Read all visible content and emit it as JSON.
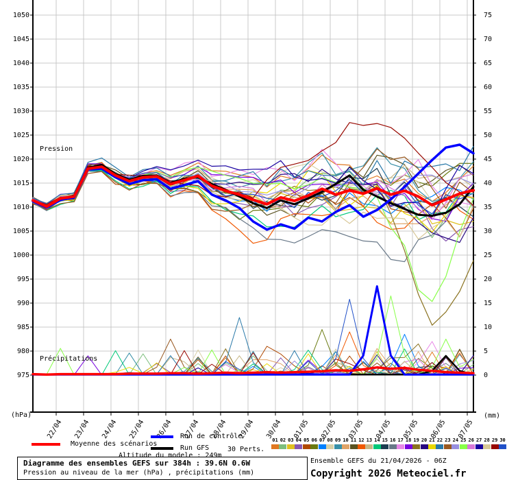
{
  "axes": {
    "left_unit": "(hPa)",
    "right_unit": "(mm)",
    "left_ticks": [
      "1050",
      "1045",
      "1040",
      "1035",
      "1030",
      "1025",
      "1020",
      "1015",
      "1010",
      "1005",
      "1000",
      "995",
      "990",
      "985",
      "980",
      "975"
    ],
    "right_ticks": [
      "75",
      "70",
      "65",
      "60",
      "55",
      "50",
      "45",
      "40",
      "35",
      "30",
      "25",
      "20",
      "15",
      "10",
      "5",
      "0"
    ]
  },
  "legend": {
    "mean_label": "Moyenne des scénarios",
    "control_label": "Run de contrôle",
    "gfs_label": "Run GFS",
    "perts_label": "30 Perts.",
    "altitude_label": "Altitude du modele : 249m"
  },
  "footer": {
    "title": "Diagramme des ensembles GEFS sur 384h : 39.6N 0.6W",
    "subtitle": "Pression au niveau de la mer (hPa) , précipitations (mm)",
    "run_info": "Ensemble GEFS du 21/04/2026 - 06Z",
    "copyright": "Copyright 2026 Meteociel.fr"
  },
  "chart_data": {
    "type": "line",
    "x_dates": [
      "22/04",
      "23/04",
      "24/04",
      "25/04",
      "26/04",
      "27/04",
      "28/04",
      "29/04",
      "30/04",
      "01/05",
      "02/05",
      "03/05",
      "04/05",
      "05/05",
      "06/05",
      "07/05"
    ],
    "grid_color": "#c8c8c8",
    "pressure": {
      "label": "Pression",
      "ylim": [
        975,
        1053
      ],
      "mean": {
        "color": "#ff0000",
        "values": [
          1011.4,
          1010.1,
          1011.8,
          1012.2,
          1018.0,
          1018.4,
          1016.6,
          1015.4,
          1016.2,
          1016.4,
          1014.8,
          1015.6,
          1016.5,
          1014.4,
          1013.4,
          1012.6,
          1011.5,
          1010.6,
          1012.0,
          1011.3,
          1012.4,
          1013.8,
          1012.6,
          1013.5,
          1012.8,
          1013.9,
          1012.6,
          1013.4,
          1012.2,
          1010.4,
          1011.6,
          1012.8,
          1013.5
        ]
      },
      "control": {
        "color": "#0000ff",
        "values": [
          1011.2,
          1009.9,
          1011.5,
          1012.0,
          1017.8,
          1018.0,
          1016.2,
          1014.8,
          1015.6,
          1015.8,
          1013.8,
          1014.6,
          1015.4,
          1012.6,
          1011.4,
          1009.8,
          1007.0,
          1005.3,
          1006.4,
          1005.5,
          1007.8,
          1007.0,
          1009.0,
          1010.4,
          1008.0,
          1009.4,
          1011.6,
          1014.2,
          1017.0,
          1019.8,
          1022.4,
          1023.0,
          1021.2
        ]
      },
      "gfs": {
        "color": "#000000",
        "values": [
          1011.3,
          1010.0,
          1011.7,
          1012.4,
          1018.2,
          1018.8,
          1016.9,
          1015.7,
          1016.5,
          1016.6,
          1015.0,
          1015.9,
          1016.2,
          1014.8,
          1013.6,
          1012.2,
          1010.8,
          1009.8,
          1011.4,
          1010.6,
          1011.8,
          1013.2,
          1014.8,
          1016.6,
          1013.6,
          1012.2,
          1010.8,
          1009.6,
          1008.4,
          1008.2,
          1008.8,
          1010.6,
          1014.2
        ]
      },
      "spread_envelope": [
        0.5,
        0.6,
        0.7,
        0.8,
        0.8,
        0.9,
        1.0,
        1.1,
        1.2,
        1.3,
        1.5,
        1.7,
        1.9,
        2.1,
        2.3,
        2.5,
        2.7,
        2.9,
        3.1,
        3.3,
        3.5,
        3.7,
        3.9,
        4.1,
        4.3,
        4.5,
        4.7,
        4.9,
        5.1,
        5.3,
        5.5,
        5.7,
        5.9
      ],
      "anomalies": [
        {
          "member": "25",
          "k": 28.5,
          "dv": -20,
          "w": 1.8
        },
        {
          "member": "19",
          "k": 29.5,
          "dv": -22,
          "w": 2.2
        },
        {
          "member": "21",
          "k": 20.5,
          "dv": 6.5,
          "w": 3.0
        },
        {
          "member": "29",
          "k": 21.5,
          "dv": 8.5,
          "w": 3.5
        },
        {
          "member": "08",
          "k": 20.0,
          "dv": 5.5,
          "w": 3.0
        }
      ]
    },
    "precip": {
      "label": "Précipitations",
      "ylim_mm": [
        0,
        80
      ],
      "mean_values": [
        0.2,
        0.1,
        0.2,
        0.2,
        0.2,
        0.2,
        0.2,
        0.3,
        0.3,
        0.3,
        0.4,
        0.4,
        0.3,
        0.4,
        0.5,
        0.4,
        0.5,
        0.6,
        0.5,
        0.6,
        0.7,
        0.8,
        1.0,
        0.9,
        1.2,
        1.6,
        1.3,
        1.5,
        1.1,
        0.9,
        0.6,
        0.5,
        0.4
      ],
      "spikes": [
        {
          "member": "21",
          "k": 7.2,
          "mm": 1.6
        },
        {
          "member": "04",
          "k": 8.8,
          "mm": 2.4
        },
        {
          "member": "23",
          "k": 9.5,
          "mm": 7.5
        },
        {
          "member": "09",
          "k": 12.3,
          "mm": 3.5
        },
        {
          "member": "26",
          "k": 13.6,
          "mm": 2.2
        },
        {
          "member": "22",
          "k": 14.5,
          "mm": 12.0
        },
        {
          "member": "10",
          "k": 15.5,
          "mm": 3.2
        },
        {
          "member": "02",
          "k": 16.2,
          "mm": 4.0
        },
        {
          "member": "05",
          "k": 16.5,
          "mm": 6.0
        },
        {
          "member": "14",
          "k": 19.8,
          "mm": 5.2
        },
        {
          "member": "06",
          "k": 20.8,
          "mm": 9.5
        },
        {
          "member": "30",
          "k": 22.5,
          "mm": 15.8
        },
        {
          "member": "12",
          "k": 23.2,
          "mm": 9.0
        },
        {
          "member": "control",
          "k": 25.1,
          "mm": 18.5
        },
        {
          "member": "25",
          "k": 25.6,
          "mm": 16.5
        },
        {
          "member": "07",
          "k": 26.9,
          "mm": 8.5
        },
        {
          "member": "19",
          "k": 27.7,
          "mm": 6.5
        },
        {
          "member": "17",
          "k": 29.1,
          "mm": 7.0
        },
        {
          "member": "25",
          "k": 29.5,
          "mm": 7.5
        },
        {
          "member": "gfs",
          "k": 29.9,
          "mm": 4.0
        },
        {
          "member": "16",
          "k": 26.4,
          "mm": 4.2
        }
      ]
    },
    "members": [
      {
        "id": "01",
        "color": "#E07820"
      },
      {
        "id": "02",
        "color": "#7CBE7C"
      },
      {
        "id": "03",
        "color": "#E0C020"
      },
      {
        "id": "04",
        "color": "#8858B0"
      },
      {
        "id": "05",
        "color": "#B04800"
      },
      {
        "id": "06",
        "color": "#6A7A10"
      },
      {
        "id": "07",
        "color": "#0080FF"
      },
      {
        "id": "08",
        "color": "#D8D0A8"
      },
      {
        "id": "09",
        "color": "#3890A8"
      },
      {
        "id": "10",
        "color": "#E0A468"
      },
      {
        "id": "11",
        "color": "#5A5220"
      },
      {
        "id": "12",
        "color": "#F05800"
      },
      {
        "id": "13",
        "color": "#C8B888"
      },
      {
        "id": "14",
        "color": "#00C878"
      },
      {
        "id": "15",
        "color": "#1C3C50"
      },
      {
        "id": "16",
        "color": "#687888"
      },
      {
        "id": "17",
        "color": "#E888E8"
      },
      {
        "id": "18",
        "color": "#7800E0"
      },
      {
        "id": "19",
        "color": "#8A7220"
      },
      {
        "id": "20",
        "color": "#280880"
      },
      {
        "id": "21",
        "color": "#E8D800"
      },
      {
        "id": "22",
        "color": "#2878A8"
      },
      {
        "id": "23",
        "color": "#985820"
      },
      {
        "id": "24",
        "color": "#9890E0"
      },
      {
        "id": "25",
        "color": "#88FF48"
      },
      {
        "id": "26",
        "color": "#D878D8"
      },
      {
        "id": "27",
        "color": "#1800A0"
      },
      {
        "id": "28",
        "color": "#D8C898"
      },
      {
        "id": "29",
        "color": "#980800"
      },
      {
        "id": "30",
        "color": "#2050C8"
      }
    ]
  }
}
